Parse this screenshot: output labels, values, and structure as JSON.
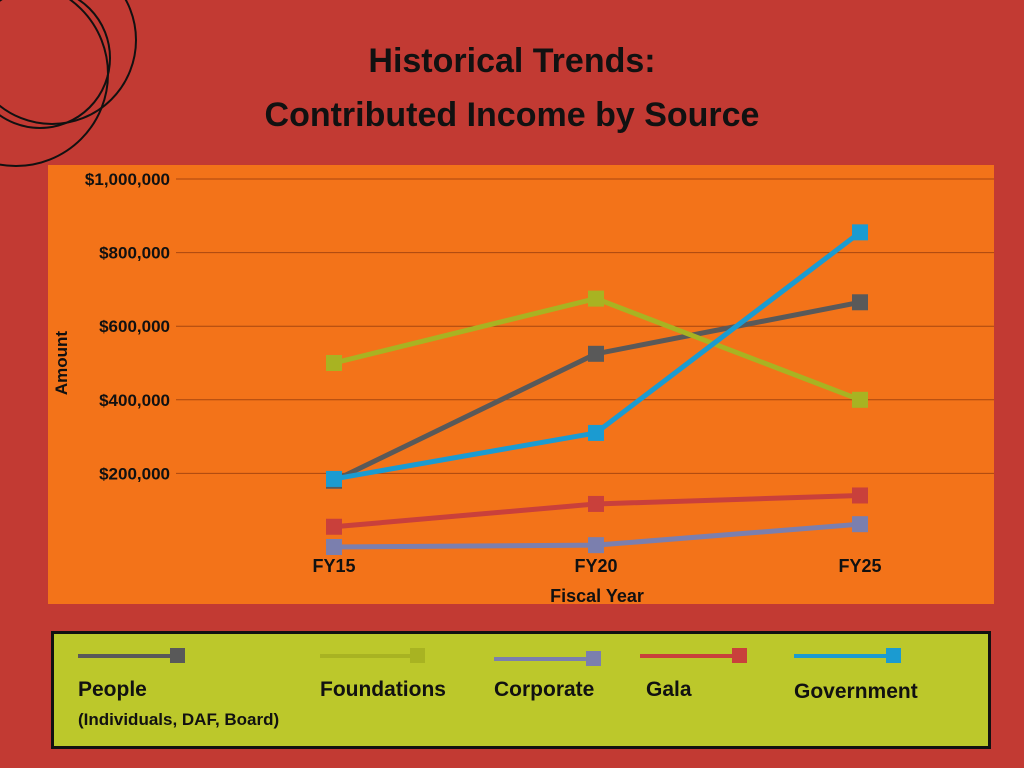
{
  "colors": {
    "background": "#c23a33",
    "plot_background": "#f37319",
    "legend_background": "#bcc82b",
    "gridline": "#a8460f"
  },
  "chart_data": {
    "type": "line",
    "title": "Historical Trends:",
    "subtitle": "Contributed Income by Source",
    "xlabel": "Fiscal Year",
    "ylabel": "Amount",
    "categories": [
      "FY15",
      "FY20",
      "FY25"
    ],
    "ylim": [
      0,
      1000000
    ],
    "yticks": [
      200000,
      400000,
      600000,
      800000,
      1000000
    ],
    "ytick_labels": [
      "$200,000",
      "$400,000",
      "$600,000",
      "$800,000",
      "$1,000,000"
    ],
    "grid": true,
    "legend_position": "bottom",
    "series": [
      {
        "name": "People",
        "subtitle": "(Individuals, DAF, Board)",
        "color": "#595959",
        "values": [
          180000,
          525000,
          665000
        ]
      },
      {
        "name": "Foundations",
        "color": "#a8b322",
        "values": [
          500000,
          675000,
          400000
        ]
      },
      {
        "name": "Corporate",
        "color": "#7b7fae",
        "values": [
          0,
          5000,
          62000
        ]
      },
      {
        "name": "Gala",
        "color": "#c9403b",
        "values": [
          55000,
          117000,
          140000
        ]
      },
      {
        "name": "Government",
        "color": "#1b9bd1",
        "values": [
          185000,
          310000,
          855000
        ]
      }
    ]
  }
}
